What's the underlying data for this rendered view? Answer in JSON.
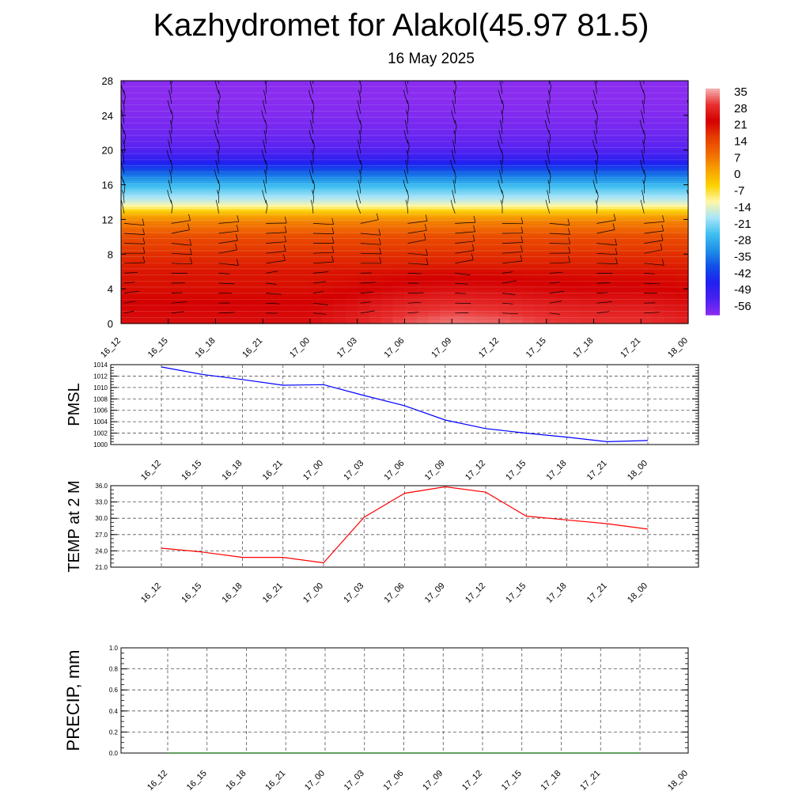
{
  "title": "Kazhydromet for Alakol(45.97 81.5)",
  "subtitle": "16 May 2025",
  "chart_data": [
    {
      "type": "heatmap",
      "name": "temperature-cross-section",
      "x_labels": [
        "16_12",
        "16_15",
        "16_18",
        "16_21",
        "17_00",
        "17_03",
        "17_06",
        "17_09",
        "17_12",
        "17_15",
        "17_18",
        "17_21",
        "18_00"
      ],
      "y_ticks": [
        "0",
        "4",
        "8",
        "12",
        "16",
        "20",
        "24",
        "28"
      ],
      "ylim": [
        0,
        28
      ],
      "colorbar_labels": [
        "35",
        "28",
        "21",
        "14",
        "7",
        "0",
        "-7",
        "-14",
        "-21",
        "-28",
        "-35",
        "-42",
        "-49",
        "-56"
      ],
      "colorbar_range": [
        -63,
        38
      ],
      "colorbar_colors": [
        "#f6b2b2",
        "#e83030",
        "#d40000",
        "#e63c00",
        "#f06a00",
        "#f7a000",
        "#fcd200",
        "#fff8a8",
        "#a8e4f8",
        "#40c0f0",
        "#2090e8",
        "#1050e8",
        "#2020f0",
        "#4820f0",
        "#8a2cf0"
      ],
      "profile_levels": [
        0,
        2,
        4,
        6,
        8,
        10,
        12,
        12.8,
        13.3,
        14,
        15,
        16,
        17,
        18,
        19,
        20,
        22,
        24,
        26,
        28
      ],
      "profile_temps": [
        26,
        24,
        22,
        21,
        18,
        14,
        5,
        -2,
        -9,
        -16,
        -22,
        -28,
        -36,
        -44,
        -52,
        -57,
        -60,
        -62,
        -63,
        -63
      ],
      "surface_warm_anomaly": [
        0,
        0,
        0,
        0,
        0,
        3,
        7,
        9,
        8,
        6,
        5,
        5,
        3
      ]
    },
    {
      "type": "line",
      "name": "PMSL",
      "ylabel": "PMSL",
      "categories": [
        "16_12",
        "16_15",
        "16_18",
        "16_21",
        "17_00",
        "17_03",
        "17_06",
        "17_09",
        "17_12",
        "17_15",
        "17_18",
        "17_21",
        "18_00"
      ],
      "values": [
        1013.6,
        1012.3,
        1011.4,
        1010.4,
        1010.5,
        1008.6,
        1006.8,
        1004.3,
        1002.8,
        1002.0,
        1001.3,
        1000.5,
        1000.7
      ],
      "ylim": [
        1000,
        1014
      ],
      "y_ticks": [
        "1000",
        "1002",
        "1004",
        "1006",
        "1008",
        "1010",
        "1012",
        "1014"
      ],
      "color": "#0000ff"
    },
    {
      "type": "line",
      "name": "TEMP at 2 M",
      "ylabel": "TEMP at 2 M",
      "categories": [
        "16_12",
        "16_15",
        "16_18",
        "16_21",
        "17_00",
        "17_03",
        "17_06",
        "17_09",
        "17_12",
        "17_15",
        "17_18",
        "17_21",
        "18_00"
      ],
      "values": [
        24.5,
        23.8,
        22.8,
        22.8,
        21.8,
        30.2,
        34.6,
        35.8,
        34.8,
        30.4,
        29.7,
        29.0,
        28.0
      ],
      "ylim": [
        21.0,
        36.0
      ],
      "y_ticks": [
        "21.0",
        "24.0",
        "27.0",
        "30.0",
        "33.0",
        "36.0"
      ],
      "color": "#ff0000"
    },
    {
      "type": "line",
      "name": "PRECIP, mm",
      "ylabel": "PRECIP, mm",
      "categories": [
        "16_12",
        "16_15",
        "16_18",
        "16_21",
        "17_00",
        "17_03",
        "17_06",
        "17_09",
        "17_12",
        "17_15",
        "17_18",
        "17_21",
        "18_00"
      ],
      "values": [
        0,
        0,
        0,
        0,
        0,
        0,
        0,
        0,
        0,
        0,
        0,
        0,
        0
      ],
      "ylim": [
        0.0,
        1.0
      ],
      "y_ticks": [
        "0.0",
        "0.2",
        "0.4",
        "0.6",
        "0.8",
        "1.0"
      ],
      "color": "#006400"
    }
  ]
}
